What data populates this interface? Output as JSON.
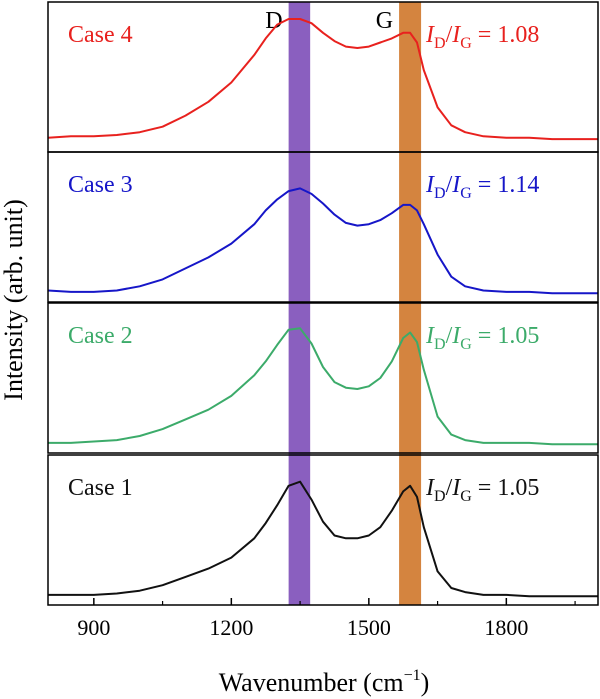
{
  "chart_data": {
    "type": "line",
    "xlabel": "Wavenumber (cm",
    "xlabel_sup": "−1",
    "xlabel_close": ")",
    "ylabel": "Intensity (arb. unit)",
    "xlim": [
      800,
      2000
    ],
    "xticks": [
      900,
      1200,
      1500,
      1800
    ],
    "xtick_labels": [
      "900",
      "1200",
      "1500",
      "1800"
    ],
    "ylim": [
      0,
      1
    ],
    "grid": false,
    "bands": [
      {
        "name": "D",
        "label": "D",
        "xmin": 1325,
        "xmax": 1372,
        "color": "#8a5fbf"
      },
      {
        "name": "G",
        "label": "G",
        "xmin": 1566,
        "xmax": 1614,
        "color": "#d4843f"
      }
    ],
    "series": [
      {
        "name": "Case 4",
        "label": "Case 4",
        "color": "#e8211e",
        "ratio_I": "I",
        "ratio_D": "D",
        "ratio_sep": "/",
        "ratio_G": "G",
        "ratio_value": "= 1.08",
        "x": [
          800,
          850,
          900,
          950,
          1000,
          1050,
          1100,
          1150,
          1200,
          1250,
          1275,
          1300,
          1325,
          1350,
          1375,
          1400,
          1425,
          1450,
          1475,
          1500,
          1525,
          1550,
          1575,
          1590,
          1605,
          1620,
          1650,
          1680,
          1710,
          1750,
          1800,
          1850,
          1900,
          1950,
          2000
        ],
        "y": [
          0.06,
          0.07,
          0.07,
          0.08,
          0.1,
          0.14,
          0.22,
          0.32,
          0.46,
          0.66,
          0.78,
          0.88,
          0.92,
          0.92,
          0.89,
          0.82,
          0.76,
          0.72,
          0.71,
          0.72,
          0.75,
          0.78,
          0.82,
          0.82,
          0.75,
          0.55,
          0.28,
          0.15,
          0.1,
          0.07,
          0.06,
          0.06,
          0.05,
          0.05,
          0.05
        ]
      },
      {
        "name": "Case 3",
        "label": "Case 3",
        "color": "#1616c8",
        "ratio_I": "I",
        "ratio_D": "D",
        "ratio_sep": "/",
        "ratio_G": "G",
        "ratio_value": "= 1.14",
        "x": [
          800,
          850,
          900,
          950,
          1000,
          1050,
          1100,
          1150,
          1200,
          1250,
          1275,
          1300,
          1325,
          1350,
          1375,
          1400,
          1425,
          1450,
          1475,
          1500,
          1525,
          1550,
          1575,
          1590,
          1605,
          1620,
          1650,
          1680,
          1710,
          1750,
          1800,
          1850,
          1900,
          1950,
          2000
        ],
        "y": [
          0.04,
          0.03,
          0.03,
          0.04,
          0.07,
          0.12,
          0.2,
          0.28,
          0.38,
          0.52,
          0.62,
          0.7,
          0.76,
          0.78,
          0.74,
          0.67,
          0.59,
          0.53,
          0.51,
          0.52,
          0.55,
          0.6,
          0.66,
          0.66,
          0.62,
          0.52,
          0.3,
          0.14,
          0.07,
          0.04,
          0.03,
          0.03,
          0.02,
          0.02,
          0.02
        ]
      },
      {
        "name": "Case 2",
        "label": "Case 2",
        "color": "#3cab6a",
        "ratio_I": "I",
        "ratio_D": "D",
        "ratio_sep": "/",
        "ratio_G": "G",
        "ratio_value": "= 1.05",
        "x": [
          800,
          850,
          900,
          950,
          1000,
          1050,
          1100,
          1150,
          1200,
          1250,
          1275,
          1300,
          1325,
          1350,
          1375,
          1400,
          1425,
          1450,
          1475,
          1500,
          1525,
          1550,
          1575,
          1590,
          1605,
          1620,
          1650,
          1680,
          1710,
          1750,
          1800,
          1850,
          1900,
          1950,
          2000
        ],
        "y": [
          0.03,
          0.03,
          0.04,
          0.05,
          0.08,
          0.13,
          0.2,
          0.27,
          0.37,
          0.52,
          0.62,
          0.74,
          0.85,
          0.86,
          0.75,
          0.58,
          0.47,
          0.43,
          0.42,
          0.44,
          0.5,
          0.62,
          0.79,
          0.83,
          0.76,
          0.56,
          0.22,
          0.09,
          0.05,
          0.03,
          0.03,
          0.03,
          0.02,
          0.02,
          0.02
        ]
      },
      {
        "name": "Case 1",
        "label": "Case 1",
        "color": "#111111",
        "ratio_I": "I",
        "ratio_D": "D",
        "ratio_sep": "/",
        "ratio_G": "G",
        "ratio_value": "= 1.05",
        "x": [
          800,
          850,
          900,
          950,
          1000,
          1050,
          1100,
          1150,
          1200,
          1250,
          1275,
          1300,
          1325,
          1350,
          1375,
          1400,
          1425,
          1450,
          1475,
          1500,
          1525,
          1550,
          1575,
          1590,
          1605,
          1620,
          1650,
          1680,
          1710,
          1750,
          1800,
          1850,
          1900,
          1950,
          2000
        ],
        "y": [
          0.03,
          0.03,
          0.03,
          0.04,
          0.06,
          0.1,
          0.16,
          0.22,
          0.3,
          0.44,
          0.55,
          0.68,
          0.82,
          0.85,
          0.72,
          0.56,
          0.46,
          0.44,
          0.44,
          0.46,
          0.52,
          0.64,
          0.78,
          0.82,
          0.74,
          0.52,
          0.2,
          0.08,
          0.05,
          0.03,
          0.03,
          0.02,
          0.02,
          0.02,
          0.02
        ]
      }
    ]
  }
}
